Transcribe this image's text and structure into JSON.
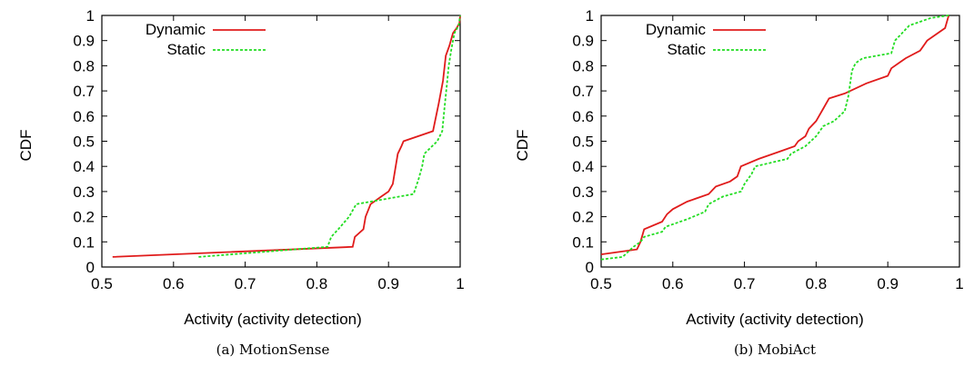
{
  "chart_data": [
    {
      "type": "line",
      "caption": "(a) MotionSense",
      "xlabel": "Activity (activity detection)",
      "ylabel": "CDF",
      "xlim": [
        0.5,
        1
      ],
      "ylim": [
        0,
        1
      ],
      "xticks": [
        "0.5",
        "0.6",
        "0.7",
        "0.8",
        "0.9",
        "1"
      ],
      "yticks": [
        "0",
        "0.1",
        "0.2",
        "0.3",
        "0.4",
        "0.5",
        "0.6",
        "0.7",
        "0.8",
        "0.9",
        "1"
      ],
      "legend_position": "top-left",
      "series": [
        {
          "name": "Dynamic",
          "color": "#e01b1b",
          "dash": "solid",
          "points": [
            [
              0.515,
              0.04
            ],
            [
              0.85,
              0.08
            ],
            [
              0.853,
              0.12
            ],
            [
              0.865,
              0.15
            ],
            [
              0.868,
              0.2
            ],
            [
              0.875,
              0.25
            ],
            [
              0.89,
              0.28
            ],
            [
              0.9,
              0.3
            ],
            [
              0.906,
              0.33
            ],
            [
              0.91,
              0.4
            ],
            [
              0.913,
              0.45
            ],
            [
              0.918,
              0.48
            ],
            [
              0.921,
              0.5
            ],
            [
              0.962,
              0.54
            ],
            [
              0.97,
              0.65
            ],
            [
              0.976,
              0.74
            ],
            [
              0.98,
              0.84
            ],
            [
              0.985,
              0.88
            ],
            [
              0.99,
              0.93
            ],
            [
              0.995,
              0.95
            ],
            [
              0.999,
              0.97
            ],
            [
              1.0,
              1.0
            ]
          ]
        },
        {
          "name": "Static",
          "color": "#22dd22",
          "dash": "dashed",
          "points": [
            [
              0.635,
              0.04
            ],
            [
              0.815,
              0.08
            ],
            [
              0.82,
              0.12
            ],
            [
              0.83,
              0.15
            ],
            [
              0.845,
              0.2
            ],
            [
              0.855,
              0.25
            ],
            [
              0.935,
              0.29
            ],
            [
              0.942,
              0.35
            ],
            [
              0.947,
              0.4
            ],
            [
              0.95,
              0.45
            ],
            [
              0.968,
              0.5
            ],
            [
              0.975,
              0.54
            ],
            [
              0.978,
              0.63
            ],
            [
              0.982,
              0.74
            ],
            [
              0.984,
              0.8
            ],
            [
              0.988,
              0.87
            ],
            [
              0.992,
              0.93
            ],
            [
              0.998,
              0.96
            ],
            [
              1.0,
              1.0
            ]
          ]
        }
      ]
    },
    {
      "type": "line",
      "caption": "(b) MobiAct",
      "xlabel": "Activity (activity detection)",
      "ylabel": "CDF",
      "xlim": [
        0.5,
        1
      ],
      "ylim": [
        0,
        1
      ],
      "xticks": [
        "0.5",
        "0.6",
        "0.7",
        "0.8",
        "0.9",
        "1"
      ],
      "yticks": [
        "0",
        "0.1",
        "0.2",
        "0.3",
        "0.4",
        "0.5",
        "0.6",
        "0.7",
        "0.8",
        "0.9",
        "1"
      ],
      "legend_position": "top-left",
      "series": [
        {
          "name": "Dynamic",
          "color": "#e01b1b",
          "dash": "solid",
          "points": [
            [
              0.5,
              0.05
            ],
            [
              0.55,
              0.07
            ],
            [
              0.555,
              0.1
            ],
            [
              0.56,
              0.15
            ],
            [
              0.585,
              0.18
            ],
            [
              0.592,
              0.21
            ],
            [
              0.6,
              0.23
            ],
            [
              0.62,
              0.26
            ],
            [
              0.65,
              0.29
            ],
            [
              0.66,
              0.32
            ],
            [
              0.68,
              0.34
            ],
            [
              0.69,
              0.36
            ],
            [
              0.695,
              0.4
            ],
            [
              0.72,
              0.43
            ],
            [
              0.75,
              0.46
            ],
            [
              0.77,
              0.48
            ],
            [
              0.775,
              0.5
            ],
            [
              0.785,
              0.52
            ],
            [
              0.79,
              0.55
            ],
            [
              0.8,
              0.58
            ],
            [
              0.81,
              0.63
            ],
            [
              0.818,
              0.67
            ],
            [
              0.84,
              0.69
            ],
            [
              0.87,
              0.73
            ],
            [
              0.9,
              0.76
            ],
            [
              0.905,
              0.79
            ],
            [
              0.915,
              0.81
            ],
            [
              0.925,
              0.83
            ],
            [
              0.945,
              0.86
            ],
            [
              0.955,
              0.9
            ],
            [
              0.98,
              0.95
            ],
            [
              0.985,
              1.0
            ]
          ]
        },
        {
          "name": "Static",
          "color": "#22dd22",
          "dash": "dashed",
          "points": [
            [
              0.5,
              0.03
            ],
            [
              0.53,
              0.04
            ],
            [
              0.545,
              0.08
            ],
            [
              0.555,
              0.1
            ],
            [
              0.56,
              0.12
            ],
            [
              0.585,
              0.14
            ],
            [
              0.59,
              0.16
            ],
            [
              0.62,
              0.19
            ],
            [
              0.645,
              0.22
            ],
            [
              0.65,
              0.25
            ],
            [
              0.67,
              0.28
            ],
            [
              0.695,
              0.3
            ],
            [
              0.7,
              0.33
            ],
            [
              0.71,
              0.37
            ],
            [
              0.715,
              0.4
            ],
            [
              0.76,
              0.43
            ],
            [
              0.765,
              0.45
            ],
            [
              0.785,
              0.48
            ],
            [
              0.8,
              0.52
            ],
            [
              0.81,
              0.56
            ],
            [
              0.825,
              0.58
            ],
            [
              0.84,
              0.62
            ],
            [
              0.845,
              0.68
            ],
            [
              0.85,
              0.78
            ],
            [
              0.855,
              0.81
            ],
            [
              0.865,
              0.83
            ],
            [
              0.905,
              0.85
            ],
            [
              0.91,
              0.9
            ],
            [
              0.92,
              0.93
            ],
            [
              0.93,
              0.96
            ],
            [
              0.96,
              0.99
            ],
            [
              0.985,
              1.0
            ]
          ]
        }
      ]
    }
  ]
}
